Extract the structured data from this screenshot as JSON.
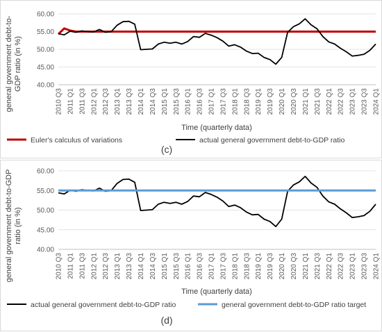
{
  "chart_data": [
    {
      "type": "line",
      "panel_label": "(c)",
      "xlabel": "Time (quarterly data)",
      "ylabel_line1": "general government debt-to-",
      "ylabel_line2": "GDP ratio  (in %)",
      "ylim": [
        40,
        60
      ],
      "y_ticks": [
        "40.00",
        "45.00",
        "50.00",
        "55.00",
        "60.00"
      ],
      "x_tick_labels": [
        "2010 Q3",
        "2011 Q1",
        "2011 Q3",
        "2012 Q1",
        "2012 Q3",
        "2013 Q1",
        "2013 Q3",
        "2014 Q1",
        "2014 Q3",
        "2015 Q1",
        "2015 Q3",
        "2016 Q1",
        "2016 Q3",
        "2017 Q1",
        "2017 Q3",
        "2018 Q1",
        "2018 Q3",
        "2019 Q1",
        "2019 Q3",
        "2020 Q1",
        "2020 Q3",
        "2021 Q1",
        "2021 Q3",
        "2022 Q1",
        "2022 Q3",
        "2023 Q1",
        "2023 Q3",
        "2024 Q1"
      ],
      "legend_position": "bottom",
      "series": [
        {
          "name": "Euler's calculus of variations",
          "color": "#c00000",
          "values": [
            54.3,
            55.9,
            55.3,
            55.0,
            55.0,
            55.0,
            55.0,
            55.0,
            55.0,
            55.0,
            55.0,
            55.0,
            55.0,
            55.0,
            55.0,
            55.0,
            55.0,
            55.0,
            55.0,
            55.0,
            55.0,
            55.0,
            55.0,
            55.0,
            55.0,
            55.0,
            55.0,
            55.0,
            55.0,
            55.0,
            55.0,
            55.0,
            55.0,
            55.0,
            55.0,
            55.0,
            55.0,
            55.0,
            55.0,
            55.0,
            55.0,
            55.0,
            55.0,
            55.0,
            55.0,
            55.0,
            55.0,
            55.0,
            55.0,
            55.0,
            55.0,
            55.0,
            55.0,
            55.0,
            55.0
          ]
        },
        {
          "name": "actual general government debt-to-GDP ratio",
          "color": "#000000",
          "values": [
            54.4,
            54.1,
            55.1,
            54.8,
            55.2,
            55.0,
            54.9,
            55.6,
            54.8,
            55.0,
            56.8,
            57.8,
            57.9,
            57.1,
            49.9,
            50.0,
            50.1,
            51.5,
            52.0,
            51.7,
            52.0,
            51.5,
            52.2,
            53.6,
            53.4,
            54.5,
            54.0,
            53.3,
            52.3,
            50.9,
            51.3,
            50.6,
            49.5,
            48.8,
            48.9,
            47.7,
            47.1,
            45.8,
            47.7,
            54.8,
            56.4,
            57.2,
            58.6,
            56.9,
            55.8,
            53.6,
            52.1,
            51.5,
            50.3,
            49.3,
            48.1,
            48.3,
            48.6,
            49.7,
            51.5
          ]
        }
      ]
    },
    {
      "type": "line",
      "panel_label": "(d)",
      "xlabel": "Time (quarterly data)",
      "ylabel_line1": "general government debt-to-GDP",
      "ylabel_line2": "ratio  (in %)",
      "ylim": [
        40,
        60
      ],
      "y_ticks": [
        "40.00",
        "45.00",
        "50.00",
        "55.00",
        "60.00"
      ],
      "x_tick_labels": [
        "2010 Q3",
        "2011 Q1",
        "2011 Q3",
        "2012 Q1",
        "2012 Q3",
        "2013 Q1",
        "2013 Q3",
        "2014 Q1",
        "2014 Q3",
        "2015 Q1",
        "2015 Q3",
        "2016 Q1",
        "2016 Q3",
        "2017 Q1",
        "2017 Q3",
        "2018 Q1",
        "2018 Q3",
        "2019 Q1",
        "2019 Q3",
        "2020 Q1",
        "2020 Q3",
        "2021 Q1",
        "2021 Q3",
        "2022 Q1",
        "2022 Q3",
        "2023 Q1",
        "2023 Q3",
        "2024 Q1"
      ],
      "legend_position": "bottom",
      "series": [
        {
          "name": "actual general government debt-to-GDP ratio",
          "color": "#000000",
          "values": [
            54.4,
            54.1,
            55.1,
            54.8,
            55.2,
            55.0,
            54.9,
            55.6,
            54.8,
            55.0,
            56.8,
            57.8,
            57.9,
            57.1,
            49.9,
            50.0,
            50.1,
            51.5,
            52.0,
            51.7,
            52.0,
            51.5,
            52.2,
            53.6,
            53.4,
            54.5,
            54.0,
            53.3,
            52.3,
            50.9,
            51.3,
            50.6,
            49.5,
            48.8,
            48.9,
            47.7,
            47.1,
            45.8,
            47.7,
            54.8,
            56.4,
            57.2,
            58.6,
            56.9,
            55.8,
            53.6,
            52.1,
            51.5,
            50.3,
            49.3,
            48.1,
            48.3,
            48.6,
            49.7,
            51.5
          ]
        },
        {
          "name": "general government debt-to-GDP ratio target",
          "color": "#5b9bd5",
          "values": [
            55.0,
            55.0,
            55.0,
            55.0,
            55.0,
            55.0,
            55.0,
            55.0,
            55.0,
            55.0,
            55.0,
            55.0,
            55.0,
            55.0,
            55.0,
            55.0,
            55.0,
            55.0,
            55.0,
            55.0,
            55.0,
            55.0,
            55.0,
            55.0,
            55.0,
            55.0,
            55.0,
            55.0,
            55.0,
            55.0,
            55.0,
            55.0,
            55.0,
            55.0,
            55.0,
            55.0,
            55.0,
            55.0,
            55.0,
            55.0,
            55.0,
            55.0,
            55.0,
            55.0,
            55.0,
            55.0,
            55.0,
            55.0,
            55.0,
            55.0,
            55.0,
            55.0,
            55.0,
            55.0,
            55.0
          ]
        }
      ]
    }
  ]
}
